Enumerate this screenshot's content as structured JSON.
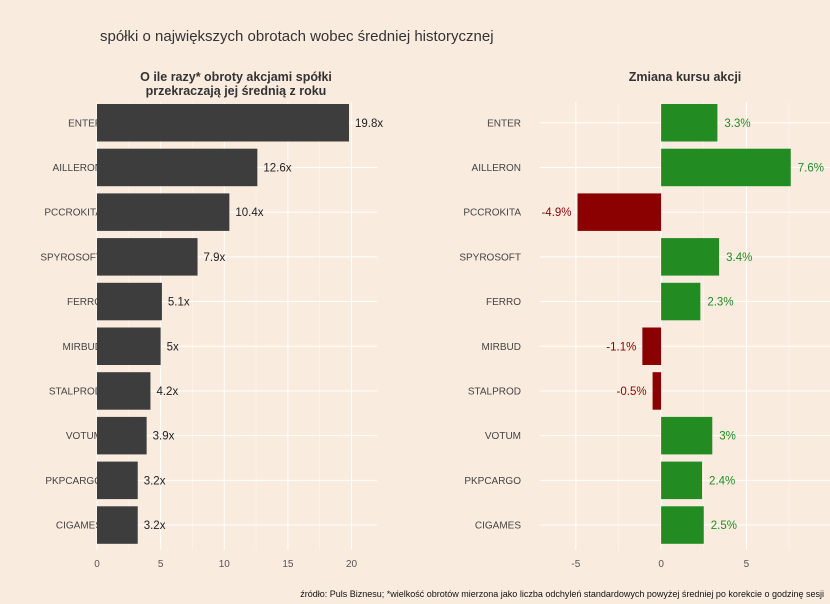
{
  "title": "spółki o największych obrotach wobec średniej historycznej",
  "caption": "źródło: Puls Biznesu; *wielkość obrotów mierzona jako liczba odchyleń standardowych powyżej średniej po korekcie o godzinę sesji",
  "colors": {
    "background": "#faebdf",
    "bar_dark": "#3d3d3d",
    "positive": "#228b22",
    "negative": "#8b0000"
  },
  "chart_data": [
    {
      "type": "bar",
      "orientation": "horizontal",
      "title": "O ile razy* obroty akcjami spółki przekraczają jej średnią z roku",
      "title_lines": [
        "O ile razy* obroty akcjami spółki",
        "przekraczają jej średnią z roku"
      ],
      "categories": [
        "ENTER",
        "AILLERON",
        "PCCROKITA",
        "SPYROSOFT",
        "FERRO",
        "MIRBUD",
        "STALPROD",
        "VOTUM",
        "PKPCARGO",
        "CIGAMES"
      ],
      "values": [
        19.8,
        12.6,
        10.4,
        7.9,
        5.1,
        5.0,
        4.2,
        3.9,
        3.2,
        3.2
      ],
      "labels": [
        "19.8x",
        "12.6x",
        "10.4x",
        "7.9x",
        "5.1x",
        "5x",
        "4.2x",
        "3.9x",
        "3.2x",
        "3.2x"
      ],
      "xlim": [
        0,
        22
      ],
      "xticks": [
        0,
        5,
        10,
        15,
        20
      ],
      "grid": true
    },
    {
      "type": "bar",
      "orientation": "horizontal",
      "title": "Zmiana kursu akcji",
      "title_lines": [
        "Zmiana kursu akcji"
      ],
      "categories": [
        "ENTER",
        "AILLERON",
        "PCCROKITA",
        "SPYROSOFT",
        "FERRO",
        "MIRBUD",
        "STALPROD",
        "VOTUM",
        "PKPCARGO",
        "CIGAMES"
      ],
      "values": [
        3.3,
        7.6,
        -4.9,
        3.4,
        2.3,
        -1.1,
        -0.5,
        3.0,
        2.4,
        2.5
      ],
      "labels": [
        "3.3%",
        "7.6%",
        "-4.9%",
        "3.4%",
        "2.3%",
        "-1.1%",
        "-0.5%",
        "3%",
        "2.4%",
        "2.5%"
      ],
      "xlim": [
        -7.1,
        9.9
      ],
      "xticks": [
        -5,
        0,
        5
      ],
      "grid": true
    }
  ]
}
